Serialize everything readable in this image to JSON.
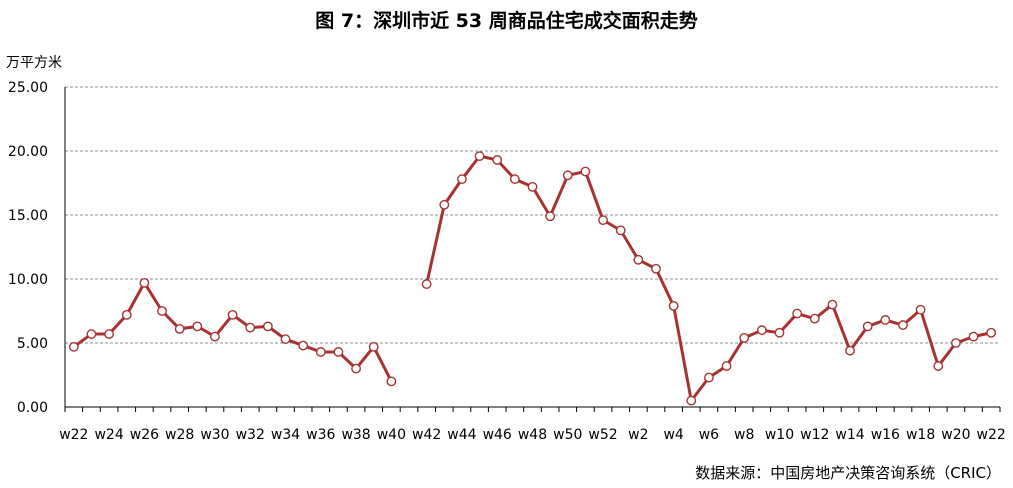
{
  "title": "图 7：深圳市近 53 周商品住宅成交面积走势",
  "unit_label": "万平方米",
  "source": "数据来源：中国房地产决策咨询系统（CRIC）",
  "colors": {
    "line": "#A83232",
    "marker_fill": "#ffffff",
    "grid": "#8c8c8c",
    "axis": "#000000"
  },
  "chart_data": {
    "type": "line",
    "title": "图 7：深圳市近 53 周商品住宅成交面积走势",
    "ylabel": "万平方米",
    "xlabel": "",
    "ylim": [
      0,
      25
    ],
    "y_ticks": [
      "0.00",
      "5.00",
      "10.00",
      "15.00",
      "20.00",
      "25.00"
    ],
    "grid": true,
    "x": [
      "w22",
      "w23",
      "w24",
      "w25",
      "w26",
      "w27",
      "w28",
      "w29",
      "w30",
      "w31",
      "w32",
      "w33",
      "w34",
      "w35",
      "w36",
      "w37",
      "w38",
      "w39",
      "w40",
      "w41",
      "w42",
      "w43",
      "w44",
      "w45",
      "w46",
      "w47",
      "w48",
      "w49",
      "w50",
      "w51",
      "w52",
      "w1",
      "w2",
      "w3",
      "w4",
      "w5",
      "w6",
      "w7",
      "w8",
      "w9",
      "w10",
      "w11",
      "w12",
      "w13",
      "w14",
      "w15",
      "w16",
      "w17",
      "w18",
      "w19",
      "w20",
      "w21",
      "w22"
    ],
    "x_tick_labels": [
      "w22",
      "w24",
      "w26",
      "w28",
      "w30",
      "w32",
      "w34",
      "w36",
      "w38",
      "w40",
      "w42",
      "w44",
      "w46",
      "w48",
      "w50",
      "w52",
      "w2",
      "w4",
      "w6",
      "w8",
      "w10",
      "w12",
      "w14",
      "w16",
      "w18",
      "w20",
      "w22"
    ],
    "series": [
      {
        "values": [
          4.7,
          5.7,
          5.7,
          7.2,
          9.7,
          7.5,
          6.1,
          6.3,
          5.5,
          7.2,
          6.2,
          6.3,
          5.3,
          4.8,
          4.3,
          4.3,
          3.0,
          4.7,
          2.0,
          null,
          9.6,
          15.8,
          17.8,
          19.6,
          19.3,
          17.8,
          17.2,
          14.9,
          18.1,
          18.4,
          14.6,
          13.8,
          11.5,
          10.8,
          7.9,
          0.5,
          2.3,
          3.2,
          5.4,
          6.0,
          5.8,
          7.3,
          6.9,
          8.0,
          4.4,
          6.3,
          6.8,
          6.4,
          7.6,
          3.2,
          5.0,
          5.5,
          5.8
        ]
      }
    ]
  }
}
